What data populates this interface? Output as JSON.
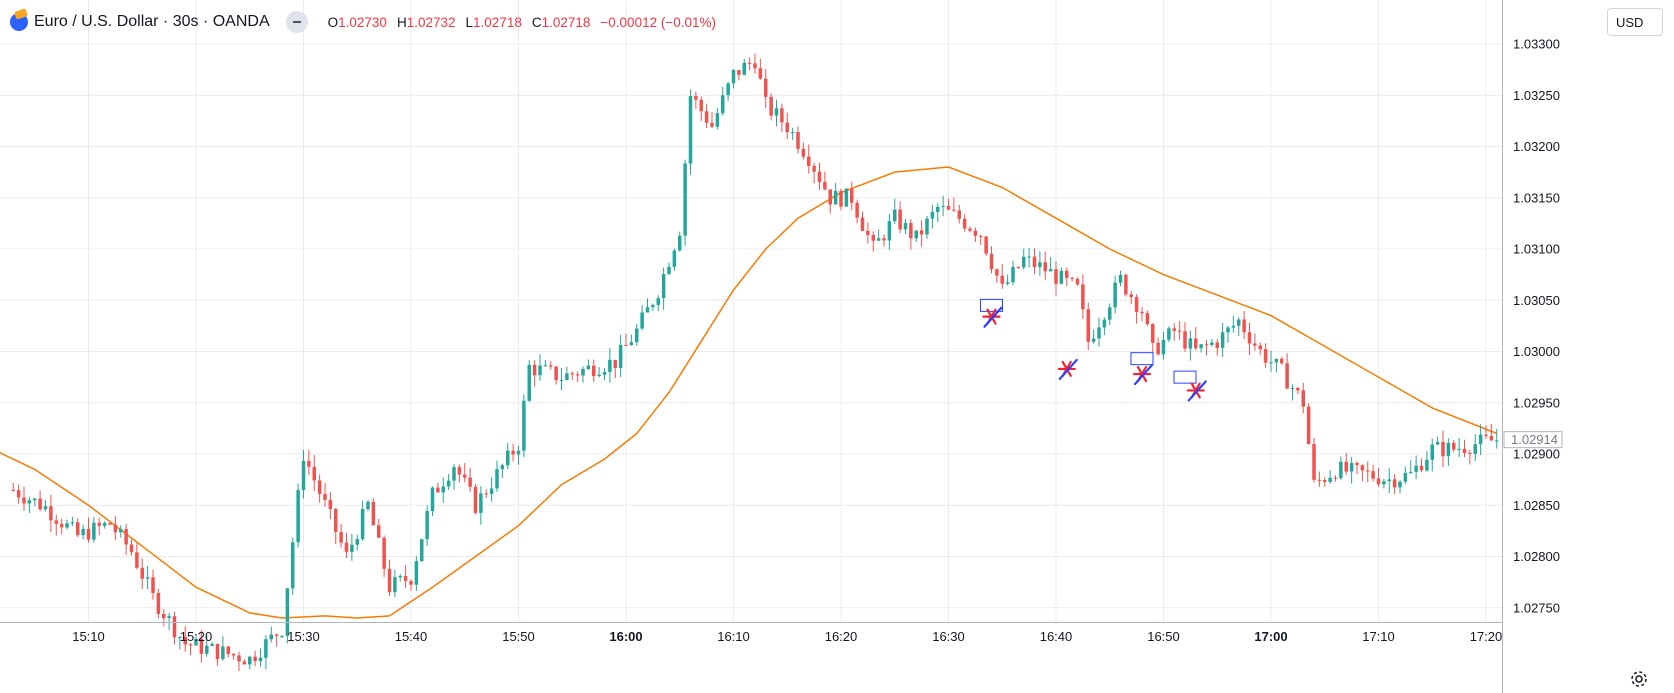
{
  "header": {
    "symbol_title": "Euro / U.S. Dollar · 30s · OANDA",
    "ohlc": [
      {
        "key": "O",
        "value": "1.02730"
      },
      {
        "key": "H",
        "value": "1.02732"
      },
      {
        "key": "L",
        "value": "1.02718"
      },
      {
        "key": "C",
        "value": "1.02718"
      }
    ],
    "change": "−0.00012 (−0.01%)",
    "currency_button": "USD"
  },
  "colors": {
    "up": "#26a69a",
    "down": "#ef5350",
    "ma_line": "#f57c00",
    "markers": "#f7202c",
    "marker_slash": "#2942ff",
    "grid": "#e8ecf1"
  },
  "chart_data": {
    "type": "candlestick",
    "x_tick_labels": [
      "15:10",
      "15:20",
      "15:30",
      "15:40",
      "15:50",
      "16:00",
      "16:10",
      "16:20",
      "16:30",
      "16:40",
      "16:50",
      "17:00",
      "17:10",
      "17:20"
    ],
    "x_tick_bold": [
      "16:00",
      "17:00"
    ],
    "y_tick_labels": [
      "1.03300",
      "1.03250",
      "1.03200",
      "1.03150",
      "1.03100",
      "1.03050",
      "1.03000",
      "1.02950",
      "1.02900",
      "1.02850",
      "1.02800",
      "1.02750"
    ],
    "y_range": [
      1.0273,
      1.0332
    ],
    "last_price_label": "1.02914",
    "close_path": [
      [
        "15:03",
        1.02865
      ],
      [
        "15:06",
        1.02848
      ],
      [
        "15:09",
        1.0282
      ],
      [
        "15:12",
        1.02832
      ],
      [
        "15:14",
        1.02805
      ],
      [
        "15:16",
        1.0276
      ],
      [
        "15:19",
        1.02715
      ],
      [
        "15:25",
        1.027
      ],
      [
        "15:28",
        1.0273
      ],
      [
        "15:30",
        1.029
      ],
      [
        "15:32",
        1.0285
      ],
      [
        "15:34",
        1.028
      ],
      [
        "15:36",
        1.0285
      ],
      [
        "15:38",
        1.0277
      ],
      [
        "15:40",
        1.0278
      ],
      [
        "15:42",
        1.0286
      ],
      [
        "15:44",
        1.0289
      ],
      [
        "15:46",
        1.0285
      ],
      [
        "15:48",
        1.0288
      ],
      [
        "15:50",
        1.0291
      ],
      [
        "15:51",
        1.02985
      ],
      [
        "15:54",
        1.02975
      ],
      [
        "15:57",
        1.02985
      ],
      [
        "15:59",
        1.0299
      ],
      [
        "16:01",
        1.0302
      ],
      [
        "16:03",
        1.0306
      ],
      [
        "16:05",
        1.0312
      ],
      [
        "16:06",
        1.0325
      ],
      [
        "16:08",
        1.0322
      ],
      [
        "16:10",
        1.0327
      ],
      [
        "16:12",
        1.03285
      ],
      [
        "16:13",
        1.0324
      ],
      [
        "16:15",
        1.0322
      ],
      [
        "16:17",
        1.0319
      ],
      [
        "16:19",
        1.0315
      ],
      [
        "16:21",
        1.0315
      ],
      [
        "16:23",
        1.031
      ],
      [
        "16:25",
        1.0313
      ],
      [
        "16:27",
        1.0311
      ],
      [
        "16:29",
        1.0314
      ],
      [
        "16:31",
        1.0313
      ],
      [
        "16:33",
        1.03115
      ],
      [
        "16:35",
        1.0306
      ],
      [
        "16:37",
        1.0309
      ],
      [
        "16:39",
        1.0308
      ],
      [
        "16:42",
        1.0306
      ],
      [
        "16:43",
        1.0301
      ],
      [
        "16:46",
        1.0307
      ],
      [
        "16:48",
        1.0304
      ],
      [
        "16:49",
        1.03
      ],
      [
        "16:51",
        1.0302
      ],
      [
        "16:53",
        1.03
      ],
      [
        "16:55",
        1.0301
      ],
      [
        "16:57",
        1.0303
      ],
      [
        "16:59",
        1.03
      ],
      [
        "17:01",
        1.0298
      ],
      [
        "17:03",
        1.0295
      ],
      [
        "17:04",
        1.0287
      ],
      [
        "17:06",
        1.02885
      ],
      [
        "17:09",
        1.0288
      ],
      [
        "17:11",
        1.02875
      ],
      [
        "17:13",
        1.0288
      ],
      [
        "17:15",
        1.02905
      ],
      [
        "17:17",
        1.02905
      ],
      [
        "17:19",
        1.0291
      ],
      [
        "17:21",
        1.02914
      ]
    ],
    "ma_path": [
      [
        "15:00",
        1.0291
      ],
      [
        "15:05",
        1.02885
      ],
      [
        "15:10",
        1.0285
      ],
      [
        "15:15",
        1.0281
      ],
      [
        "15:20",
        1.0277
      ],
      [
        "15:25",
        1.02745
      ],
      [
        "15:28",
        1.0274
      ],
      [
        "15:32",
        1.02742
      ],
      [
        "15:35",
        1.0274
      ],
      [
        "15:38",
        1.02742
      ],
      [
        "15:42",
        1.0277
      ],
      [
        "15:46",
        1.028
      ],
      [
        "15:50",
        1.0283
      ],
      [
        "15:54",
        1.0287
      ],
      [
        "15:58",
        1.02895
      ],
      [
        "16:01",
        1.0292
      ],
      [
        "16:04",
        1.0296
      ],
      [
        "16:07",
        1.0301
      ],
      [
        "16:10",
        1.0306
      ],
      [
        "16:13",
        1.031
      ],
      [
        "16:16",
        1.0313
      ],
      [
        "16:20",
        1.03155
      ],
      [
        "16:25",
        1.03175
      ],
      [
        "16:30",
        1.0318
      ],
      [
        "16:35",
        1.0316
      ],
      [
        "16:40",
        1.0313
      ],
      [
        "16:45",
        1.031
      ],
      [
        "16:50",
        1.03075
      ],
      [
        "16:55",
        1.03055
      ],
      [
        "17:00",
        1.03035
      ],
      [
        "17:05",
        1.03005
      ],
      [
        "17:10",
        1.02975
      ],
      [
        "17:15",
        1.02945
      ],
      [
        "17:21",
        1.0292
      ]
    ],
    "annotations": {
      "star_markers": [
        [
          "16:34",
          1.03034
        ],
        [
          "16:41",
          1.02983
        ],
        [
          "16:48",
          1.02978
        ],
        [
          "16:53",
          1.02962
        ]
      ],
      "boxes": [
        [
          "16:34",
          1.03045
        ],
        [
          "16:48",
          1.02993
        ],
        [
          "16:52",
          1.02975
        ]
      ]
    }
  }
}
